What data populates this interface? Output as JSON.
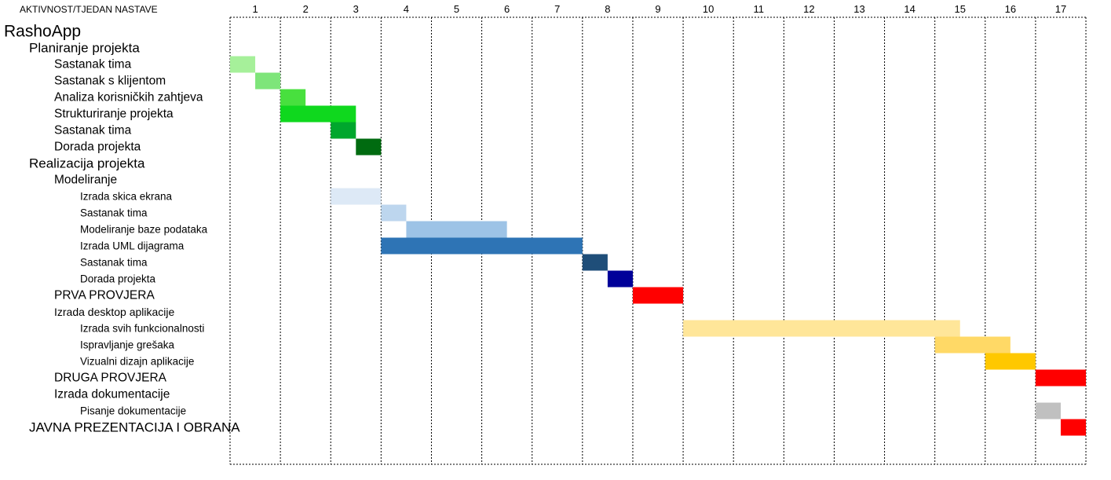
{
  "chart_data": {
    "type": "gantt",
    "header_label": "AKTIVNOST/TJEDAN NASTAVE",
    "week_labels": [
      "1",
      "2",
      "3",
      "4",
      "5",
      "6",
      "7",
      "8",
      "9",
      "10",
      "11",
      "12",
      "13",
      "14",
      "15",
      "16",
      "17"
    ],
    "rows": [
      {
        "label": "RashoApp",
        "level": 0,
        "bars": []
      },
      {
        "label": "Planiranje projekta",
        "level": 1,
        "bars": []
      },
      {
        "label": "Sastanak tima",
        "level": 2,
        "bars": [
          {
            "start": 1.0,
            "end": 1.5,
            "color": "#a6f09a"
          }
        ]
      },
      {
        "label": "Sastanak s klijentom",
        "level": 2,
        "bars": [
          {
            "start": 1.5,
            "end": 2.0,
            "color": "#7ee57a"
          }
        ]
      },
      {
        "label": "Analiza korisničkih zahtjeva",
        "level": 2,
        "bars": [
          {
            "start": 2.0,
            "end": 2.5,
            "color": "#48e03e"
          }
        ]
      },
      {
        "label": "Strukturiranje projekta",
        "level": 2,
        "bars": [
          {
            "start": 2.0,
            "end": 3.5,
            "color": "#0fd81e"
          }
        ]
      },
      {
        "label": "Sastanak tima",
        "level": 2,
        "bars": [
          {
            "start": 3.0,
            "end": 3.5,
            "color": "#00a72d"
          }
        ]
      },
      {
        "label": "Dorada projekta",
        "level": 2,
        "bars": [
          {
            "start": 3.5,
            "end": 4.0,
            "color": "#006b10"
          }
        ]
      },
      {
        "label": "Realizacija projekta",
        "level": 1,
        "bars": []
      },
      {
        "label": "Modeliranje",
        "level": 2,
        "bars": []
      },
      {
        "label": "Izrada skica ekrana",
        "level": 3,
        "bars": [
          {
            "start": 3.0,
            "end": 4.0,
            "color": "#dde9f6"
          }
        ]
      },
      {
        "label": "Sastanak tima",
        "level": 3,
        "bars": [
          {
            "start": 4.0,
            "end": 4.5,
            "color": "#bdd6ee"
          }
        ]
      },
      {
        "label": "Modeliranje baze podataka",
        "level": 3,
        "bars": [
          {
            "start": 4.5,
            "end": 6.5,
            "color": "#9dc3e6"
          }
        ]
      },
      {
        "label": "Izrada UML dijagrama",
        "level": 3,
        "bars": [
          {
            "start": 4.0,
            "end": 8.0,
            "color": "#2e74b5"
          }
        ]
      },
      {
        "label": "Sastanak tima",
        "level": 3,
        "bars": [
          {
            "start": 8.0,
            "end": 8.5,
            "color": "#1f4e79"
          }
        ]
      },
      {
        "label": "Dorada projekta",
        "level": 3,
        "bars": [
          {
            "start": 8.5,
            "end": 9.0,
            "color": "#000099"
          }
        ]
      },
      {
        "label": "PRVA PROVJERA",
        "level": 2,
        "bars": [
          {
            "start": 9.0,
            "end": 10.0,
            "color": "#ff0000"
          }
        ]
      },
      {
        "label": "Izrada desktop aplikacije",
        "level": 1.6,
        "bars": []
      },
      {
        "label": "Izrada svih funkcionalnosti",
        "level": 3,
        "bars": [
          {
            "start": 10.0,
            "end": 15.5,
            "color": "#ffe699"
          }
        ]
      },
      {
        "label": "Ispravljanje grešaka",
        "level": 3,
        "bars": [
          {
            "start": 15.0,
            "end": 16.5,
            "color": "#ffd966"
          }
        ]
      },
      {
        "label": "Vizualni dizajn aplikacije",
        "level": 3,
        "bars": [
          {
            "start": 16.0,
            "end": 17.0,
            "color": "#ffc800"
          }
        ]
      },
      {
        "label": "DRUGA PROVJERA",
        "level": 2,
        "bars": [
          {
            "start": 17.0,
            "end": 18.0,
            "color": "#ff0000"
          }
        ]
      },
      {
        "label": "Izrada dokumentacije",
        "level": 2,
        "bars": []
      },
      {
        "label": "Pisanje dokumentacije",
        "level": 3,
        "bars": [
          {
            "start": 17.0,
            "end": 17.5,
            "color": "#c0c0c0"
          }
        ]
      },
      {
        "label": "JAVNA PREZENTACIJA I OBRANA",
        "level": 1,
        "bars": [
          {
            "start": 17.5,
            "end": 18.0,
            "color": "#ff0000"
          }
        ]
      }
    ]
  }
}
